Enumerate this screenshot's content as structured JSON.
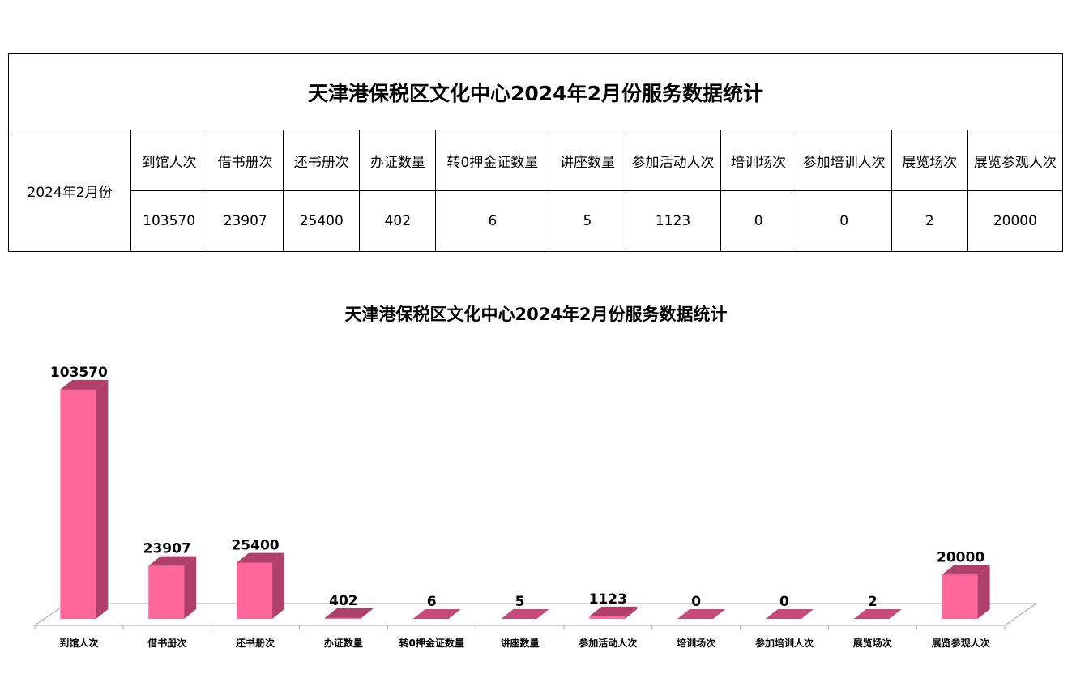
{
  "table": {
    "title": "天津港保税区文化中心2024年2月份服务数据统计",
    "row_label": "2024年2月份",
    "headers": [
      "到馆人次",
      "借书册次",
      "还书册次",
      "办证数量",
      "转0押金证数量",
      "讲座数量",
      "参加活动人次",
      "培训场次",
      "参加培训人次",
      "展览场次",
      "展览参观人次"
    ],
    "values": [
      "103570",
      "23907",
      "25400",
      "402",
      "6",
      "5",
      "1123",
      "0",
      "0",
      "2",
      "20000"
    ]
  },
  "colors": {
    "bar_front": "#ff6699",
    "bar_side": "#b0406a",
    "bar_top": "#c74a78",
    "floor_line": "#a6a6a6"
  },
  "chart_data": {
    "type": "bar",
    "title": "天津港保税区文化中心2024年2月份服务数据统计",
    "categories": [
      "到馆人次",
      "借书册次",
      "还书册次",
      "办证数量",
      "转0押金证数量",
      "讲座数量",
      "参加活动人次",
      "培训场次",
      "参加培训人次",
      "展览场次",
      "展览参观人次"
    ],
    "values": [
      103570,
      23907,
      25400,
      402,
      6,
      5,
      1123,
      0,
      0,
      2,
      20000
    ],
    "data_labels": [
      "103570",
      "23907",
      "25400",
      "402",
      "6",
      "5",
      "1123",
      "0",
      "0",
      "2",
      "20000"
    ],
    "xlabel": "",
    "ylabel": "",
    "ylim": [
      0,
      105000
    ],
    "grid": false,
    "legend": "none",
    "style": "3d"
  }
}
